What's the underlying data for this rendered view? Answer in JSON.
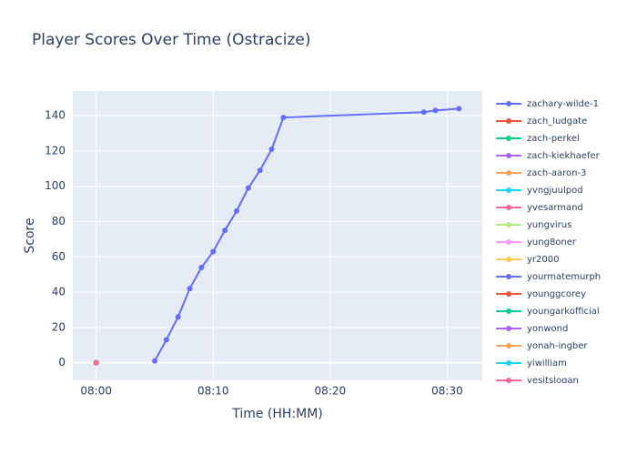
{
  "chart_data": {
    "type": "line",
    "title": "Player Scores Over Time (Ostracize)",
    "x_label": "Time (HH:MM)",
    "y_label": "Score",
    "xlim": [
      "07:58",
      "08:33"
    ],
    "xticks": [
      "08:00",
      "08:10",
      "08:20",
      "08:30"
    ],
    "ylim": [
      -10,
      154
    ],
    "yticks": [
      0,
      20,
      40,
      60,
      80,
      100,
      120,
      140
    ],
    "grid": true,
    "legend": "right",
    "series": [
      {
        "name": "zachary-wilde-1",
        "color": "#636efa",
        "x": [
          "08:05",
          "08:06",
          "08:07",
          "08:08",
          "08:09",
          "08:10",
          "08:11",
          "08:12",
          "08:13",
          "08:14",
          "08:15",
          "08:16",
          "08:28",
          "08:29",
          "08:31"
        ],
        "values": [
          1,
          13,
          26,
          42,
          54,
          63,
          75,
          86,
          99,
          109,
          121,
          139,
          142,
          143,
          144
        ]
      },
      {
        "name": "zach_ludgate",
        "color": "#EF553B",
        "x": [
          "08:00"
        ],
        "values": [
          0
        ]
      },
      {
        "name": "zach-perkel",
        "color": "#00cc96",
        "x": [
          "08:00"
        ],
        "values": [
          0
        ]
      },
      {
        "name": "zach-kiekhaefer",
        "color": "#ab63fa",
        "x": [
          "08:00"
        ],
        "values": [
          0
        ]
      },
      {
        "name": "zach-aaron-3",
        "color": "#FFA15A",
        "x": [
          "08:00"
        ],
        "values": [
          0
        ]
      },
      {
        "name": "yvngjuulpod",
        "color": "#19d3f3",
        "x": [
          "08:00"
        ],
        "values": [
          0
        ]
      },
      {
        "name": "yvesarmand",
        "color": "#FF6692",
        "x": [
          "08:00"
        ],
        "values": [
          0
        ]
      },
      {
        "name": "yungvirus",
        "color": "#B6E880",
        "x": [
          "08:00"
        ],
        "values": [
          0
        ]
      },
      {
        "name": "yung8oner",
        "color": "#FF97FF",
        "x": [
          "08:00"
        ],
        "values": [
          0
        ]
      },
      {
        "name": "yr2000",
        "color": "#FECB52",
        "x": [
          "08:00"
        ],
        "values": [
          0
        ]
      },
      {
        "name": "yourmatemurph",
        "color": "#636efa",
        "x": [
          "08:00"
        ],
        "values": [
          0
        ]
      },
      {
        "name": "younggcorey",
        "color": "#EF553B",
        "x": [
          "08:00"
        ],
        "values": [
          0
        ]
      },
      {
        "name": "youngarkofficial",
        "color": "#00cc96",
        "x": [
          "08:00"
        ],
        "values": [
          0
        ]
      },
      {
        "name": "yonwond",
        "color": "#ab63fa",
        "x": [
          "08:00"
        ],
        "values": [
          0
        ]
      },
      {
        "name": "yonah-ingber",
        "color": "#FFA15A",
        "x": [
          "08:00"
        ],
        "values": [
          0
        ]
      },
      {
        "name": "yiwilliam",
        "color": "#19d3f3",
        "x": [
          "08:00"
        ],
        "values": [
          0
        ]
      },
      {
        "name": "yesitslogan",
        "color": "#FF6692",
        "x": [
          "08:00"
        ],
        "values": [
          0
        ]
      }
    ]
  }
}
